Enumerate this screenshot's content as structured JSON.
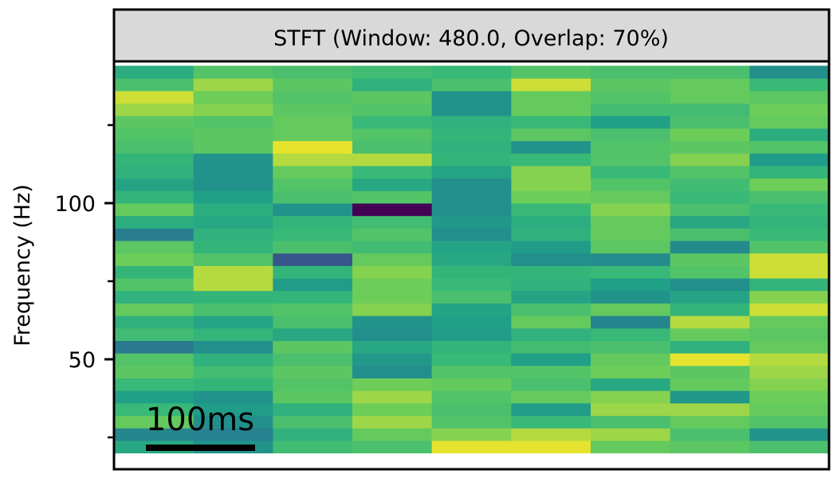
{
  "chart_data": {
    "type": "heatmap",
    "title": "STFT (Window: 480.0, Overlap: 70%)",
    "ylabel": "Frequency (Hz)",
    "xlabel": "",
    "ylim": [
      16,
      145
    ],
    "y_major_ticks": [
      50,
      100
    ],
    "y_minor_ticks": [
      25,
      75,
      125
    ],
    "n_time_columns": 9,
    "frequency_bin_edges": [
      20,
      24,
      28,
      32,
      36,
      40,
      44,
      48,
      52,
      56,
      60,
      64,
      68,
      72,
      76,
      80,
      84,
      88,
      92,
      96,
      100,
      104,
      108,
      112,
      116,
      120,
      124,
      128,
      132,
      136,
      140,
      144
    ],
    "colormap": "viridis",
    "color_range": [
      0,
      1
    ],
    "values": [
      [
        0.68,
        0.58,
        0.78,
        0.8,
        0.98,
        0.98,
        0.86,
        0.84,
        0.8
      ],
      [
        0.52,
        0.5,
        0.72,
        0.86,
        0.9,
        0.94,
        0.92,
        0.8,
        0.58
      ],
      [
        0.86,
        0.56,
        0.8,
        0.92,
        0.82,
        0.76,
        0.8,
        0.86,
        0.82
      ],
      [
        0.76,
        0.62,
        0.72,
        0.88,
        0.8,
        0.62,
        0.92,
        0.92,
        0.86
      ],
      [
        0.64,
        0.58,
        0.84,
        0.92,
        0.82,
        0.86,
        0.9,
        0.6,
        0.88
      ],
      [
        0.76,
        0.74,
        0.82,
        0.88,
        0.86,
        0.8,
        0.68,
        0.86,
        0.9
      ],
      [
        0.84,
        0.78,
        0.84,
        0.56,
        0.82,
        0.82,
        0.88,
        0.84,
        0.92
      ],
      [
        0.82,
        0.72,
        0.8,
        0.6,
        0.76,
        0.64,
        0.86,
        0.98,
        0.94
      ],
      [
        0.46,
        0.56,
        0.84,
        0.68,
        0.74,
        0.78,
        0.8,
        0.72,
        0.86
      ],
      [
        0.78,
        0.74,
        0.68,
        0.56,
        0.62,
        0.72,
        0.76,
        0.86,
        0.84
      ],
      [
        0.72,
        0.66,
        0.8,
        0.58,
        0.64,
        0.86,
        0.52,
        0.94,
        0.86
      ],
      [
        0.86,
        0.8,
        0.82,
        0.9,
        0.66,
        0.8,
        0.86,
        0.74,
        0.96
      ],
      [
        0.72,
        0.74,
        0.74,
        0.88,
        0.8,
        0.66,
        0.58,
        0.66,
        0.9
      ],
      [
        0.82,
        0.94,
        0.62,
        0.88,
        0.76,
        0.72,
        0.64,
        0.56,
        0.74
      ],
      [
        0.74,
        0.94,
        0.74,
        0.9,
        0.74,
        0.74,
        0.76,
        0.82,
        0.96
      ],
      [
        0.88,
        0.82,
        0.3,
        0.86,
        0.68,
        0.56,
        0.54,
        0.84,
        0.96
      ],
      [
        0.84,
        0.74,
        0.8,
        0.78,
        0.66,
        0.62,
        0.84,
        0.54,
        0.82
      ],
      [
        0.48,
        0.72,
        0.76,
        0.82,
        0.56,
        0.72,
        0.86,
        0.8,
        0.76
      ],
      [
        0.7,
        0.68,
        0.74,
        0.78,
        0.6,
        0.7,
        0.86,
        0.68,
        0.74
      ],
      [
        0.86,
        0.7,
        0.58,
        0.0,
        0.56,
        0.76,
        0.9,
        0.8,
        0.76
      ],
      [
        0.74,
        0.64,
        0.8,
        0.82,
        0.56,
        0.88,
        0.86,
        0.76,
        0.8
      ],
      [
        0.66,
        0.58,
        0.82,
        0.68,
        0.56,
        0.9,
        0.82,
        0.78,
        0.88
      ],
      [
        0.72,
        0.58,
        0.86,
        0.76,
        0.66,
        0.9,
        0.76,
        0.82,
        0.74
      ],
      [
        0.74,
        0.58,
        0.94,
        0.94,
        0.74,
        0.76,
        0.82,
        0.9,
        0.62
      ],
      [
        0.8,
        0.84,
        0.98,
        0.8,
        0.72,
        0.58,
        0.82,
        0.84,
        0.82
      ],
      [
        0.82,
        0.84,
        0.86,
        0.82,
        0.74,
        0.84,
        0.8,
        0.88,
        0.7
      ],
      [
        0.84,
        0.82,
        0.86,
        0.76,
        0.72,
        0.76,
        0.64,
        0.8,
        0.86
      ],
      [
        0.92,
        0.9,
        0.84,
        0.82,
        0.58,
        0.86,
        0.78,
        0.78,
        0.88
      ],
      [
        0.96,
        0.88,
        0.82,
        0.84,
        0.58,
        0.86,
        0.82,
        0.86,
        0.84
      ],
      [
        0.8,
        0.92,
        0.84,
        0.72,
        0.8,
        0.96,
        0.84,
        0.86,
        0.76
      ],
      [
        0.7,
        0.82,
        0.8,
        0.78,
        0.76,
        0.82,
        0.8,
        0.8,
        0.56
      ]
    ],
    "annotations": [
      {
        "text": "100ms",
        "kind": "scale-bar"
      }
    ]
  }
}
